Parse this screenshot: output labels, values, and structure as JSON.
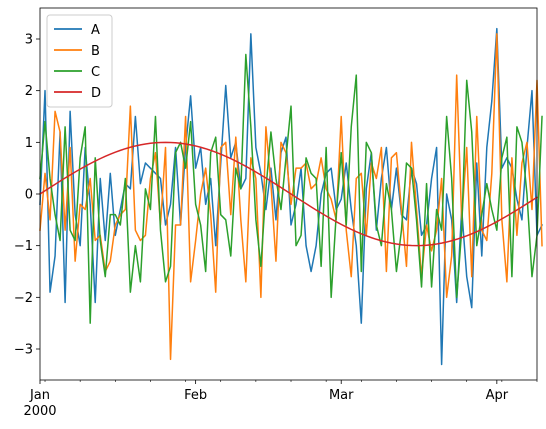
{
  "chart_data": {
    "type": "line",
    "title": "",
    "xlabel": "",
    "ylabel": "",
    "x_start": "2000-01-01",
    "x_end": "2000-04-09",
    "x_month_ticks": [
      {
        "date": "2000-01-01",
        "label": "Jan",
        "sublabel": "2000"
      },
      {
        "date": "2000-02-01",
        "label": "Feb",
        "sublabel": ""
      },
      {
        "date": "2000-03-01",
        "label": "Mar",
        "sublabel": ""
      },
      {
        "date": "2000-04-01",
        "label": "Apr",
        "sublabel": ""
      }
    ],
    "ylim": [
      -3.6,
      3.6
    ],
    "yticks": [
      -3,
      -2,
      -1,
      0,
      1,
      2,
      3
    ],
    "grid": false,
    "legend_position": "upper-left",
    "series": [
      {
        "name": "A",
        "color": "#1f77b4",
        "values": [
          -0.2,
          2.0,
          -1.9,
          -1.2,
          1.2,
          -2.1,
          1.6,
          -0.4,
          -1.0,
          0.9,
          -0.2,
          -2.1,
          0.3,
          -0.9,
          0.4,
          -0.8,
          -0.3,
          0.2,
          0.1,
          1.5,
          0.2,
          0.6,
          0.5,
          0.4,
          0.3,
          -0.6,
          -0.2,
          0.9,
          -0.6,
          0.9,
          1.9,
          0.5,
          0.9,
          -0.2,
          0.3,
          -1.0,
          0.6,
          2.1,
          0.7,
          1.0,
          0.1,
          0.3,
          3.1,
          0.9,
          0.4,
          -0.3,
          0.5,
          -0.5,
          0.8,
          1.1,
          -0.6,
          -0.2,
          0.5,
          -1.0,
          -1.5,
          -1.0,
          0.0,
          0.4,
          0.5,
          -0.3,
          -0.1,
          0.6,
          -0.3,
          -1.0,
          -2.5,
          0.1,
          0.8,
          -0.7,
          0.3,
          0.9,
          -0.3,
          0.5,
          -0.4,
          -0.5,
          0.5,
          0.2,
          -0.8,
          -0.6,
          0.3,
          0.9,
          -3.3,
          0.0,
          -0.5,
          -2.1,
          -0.3,
          -1.6,
          -2.2,
          0.6,
          -1.2,
          0.9,
          1.8,
          3.2,
          0.5,
          0.7,
          0.5,
          -0.1,
          -0.5,
          0.9,
          2.0,
          -0.8,
          -0.6
        ]
      },
      {
        "name": "B",
        "color": "#ff7f0e",
        "values": [
          -0.7,
          0.4,
          -0.5,
          1.6,
          1.2,
          -0.7,
          0.9,
          -1.3,
          -0.2,
          -0.3,
          0.3,
          -0.9,
          -0.8,
          -1.5,
          -1.3,
          -0.6,
          -0.4,
          -0.3,
          1.7,
          -0.7,
          -0.9,
          -0.8,
          0.3,
          0.8,
          -0.6,
          0.9,
          -3.2,
          -0.6,
          -0.6,
          1.5,
          -1.7,
          -0.9,
          0.0,
          0.5,
          -0.4,
          -1.9,
          0.9,
          1.0,
          -0.4,
          1.1,
          -0.5,
          -1.7,
          0.7,
          0.3,
          -2.0,
          1.3,
          0.2,
          -1.3,
          1.0,
          0.8,
          -0.2,
          0.5,
          0.5,
          0.6,
          0.1,
          0.2,
          0.7,
          0.1,
          -0.1,
          -0.5,
          1.5,
          -0.7,
          -1.6,
          0.3,
          0.4,
          -0.8,
          0.6,
          0.3,
          0.9,
          -1.5,
          0.7,
          0.8,
          -0.3,
          -1.4,
          1.0,
          -0.3,
          -1.6,
          -0.6,
          -1.1,
          -0.7,
          0.3,
          -2.0,
          -1.2,
          2.3,
          -0.5,
          0.9,
          -1.6,
          1.5,
          -0.7,
          -0.9,
          0.4,
          3.1,
          -0.5,
          -1.7,
          0.7,
          -0.8,
          0.6,
          1.0,
          -0.3,
          2.2,
          -1.0
        ]
      },
      {
        "name": "C",
        "color": "#2ca02c",
        "values": [
          0.3,
          1.4,
          0.3,
          -0.4,
          -0.9,
          1.3,
          -0.7,
          -0.9,
          0.7,
          1.3,
          -2.5,
          0.7,
          -0.9,
          -1.6,
          -0.4,
          -0.4,
          -0.6,
          0.3,
          -1.9,
          -1.0,
          -1.7,
          0.1,
          -0.3,
          1.5,
          -0.7,
          -1.7,
          -1.4,
          0.8,
          1.0,
          0.5,
          1.4,
          -0.2,
          -0.6,
          -1.5,
          0.8,
          1.1,
          -0.4,
          -0.5,
          -1.2,
          0.5,
          0.1,
          2.7,
          1.3,
          -0.5,
          -1.4,
          0.1,
          1.2,
          0.3,
          -0.3,
          0.7,
          1.7,
          -1.0,
          -0.8,
          0.7,
          0.4,
          0.3,
          -1.4,
          0.9,
          -2.0,
          -0.4,
          0.8,
          -0.6,
          1.3,
          2.3,
          -1.5,
          1.0,
          0.8,
          -0.6,
          -1.0,
          0.2,
          -0.3,
          -1.5,
          -0.7,
          0.6,
          0.5,
          -0.5,
          -1.8,
          0.2,
          -1.8,
          -0.3,
          -0.7,
          1.5,
          0.3,
          -2.0,
          -0.7,
          2.2,
          1.2,
          -1.0,
          -0.4,
          0.2,
          -0.3,
          -0.7,
          0.7,
          1.1,
          -1.6,
          1.3,
          1.0,
          0.0,
          -1.6,
          -0.8,
          1.5
        ]
      },
      {
        "name": "D",
        "color": "#d62728",
        "shape": "sine",
        "amplitude": 1.0,
        "period_days": 100
      }
    ]
  }
}
